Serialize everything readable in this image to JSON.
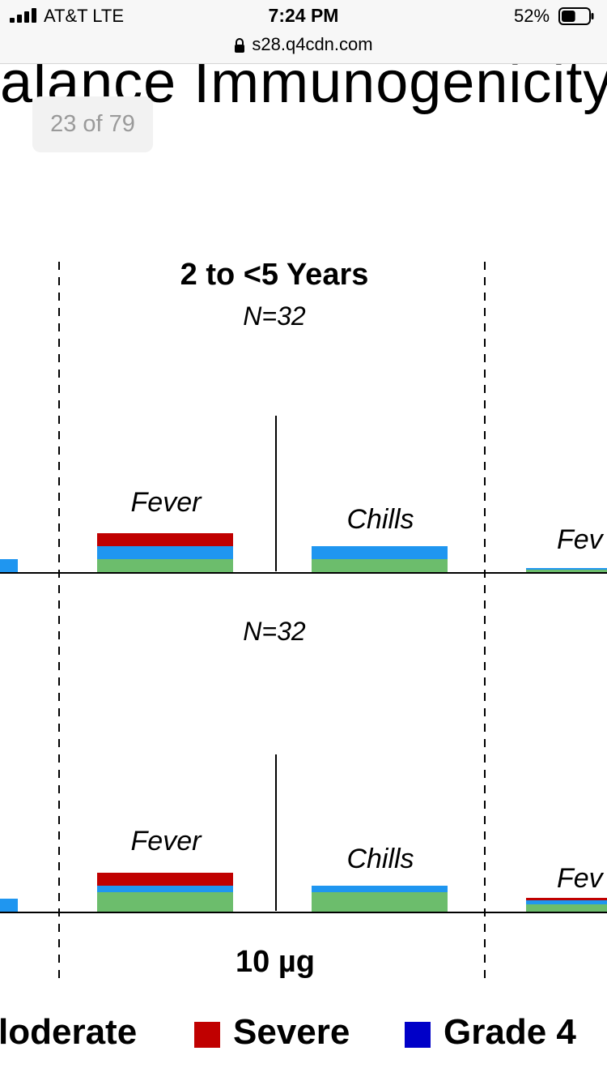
{
  "status_bar": {
    "carrier": "AT&T  LTE",
    "time": "7:24 PM",
    "battery_percent": "52%",
    "battery_level": 0.52
  },
  "browser": {
    "url": "s28.q4cdn.com"
  },
  "slide": {
    "title": "alance Immunogenicity",
    "page_indicator": "23 of 79"
  },
  "chart_data": {
    "type": "bar",
    "group_title": "2 to <5 Years",
    "dose_label": "10 µg",
    "panels": [
      {
        "n_label": "N=32",
        "categories": [
          "Fever",
          "Chills"
        ],
        "partial_label": "Fev",
        "series": [
          {
            "name": "Moderate",
            "values": [
              1,
              1
            ]
          },
          {
            "name": "Severe",
            "values": [
              1,
              0
            ]
          }
        ]
      },
      {
        "n_label": "N=32",
        "categories": [
          "Fever",
          "Chills"
        ],
        "partial_label": "Fev",
        "series": [
          {
            "name": "Moderate",
            "values": [
              0.5,
              0.5
            ]
          },
          {
            "name": "Severe",
            "values": [
              1,
              0
            ]
          }
        ]
      }
    ],
    "legend": [
      {
        "name": "loderate",
        "color": "#1f96f0"
      },
      {
        "name": "Severe",
        "color": "#c00000"
      },
      {
        "name": "Grade 4",
        "color": "#0000c8"
      }
    ],
    "colors": {
      "mild": "#6cbd6c",
      "moderate": "#1f96f0",
      "severe": "#c00000",
      "grade4": "#0000c8"
    }
  }
}
